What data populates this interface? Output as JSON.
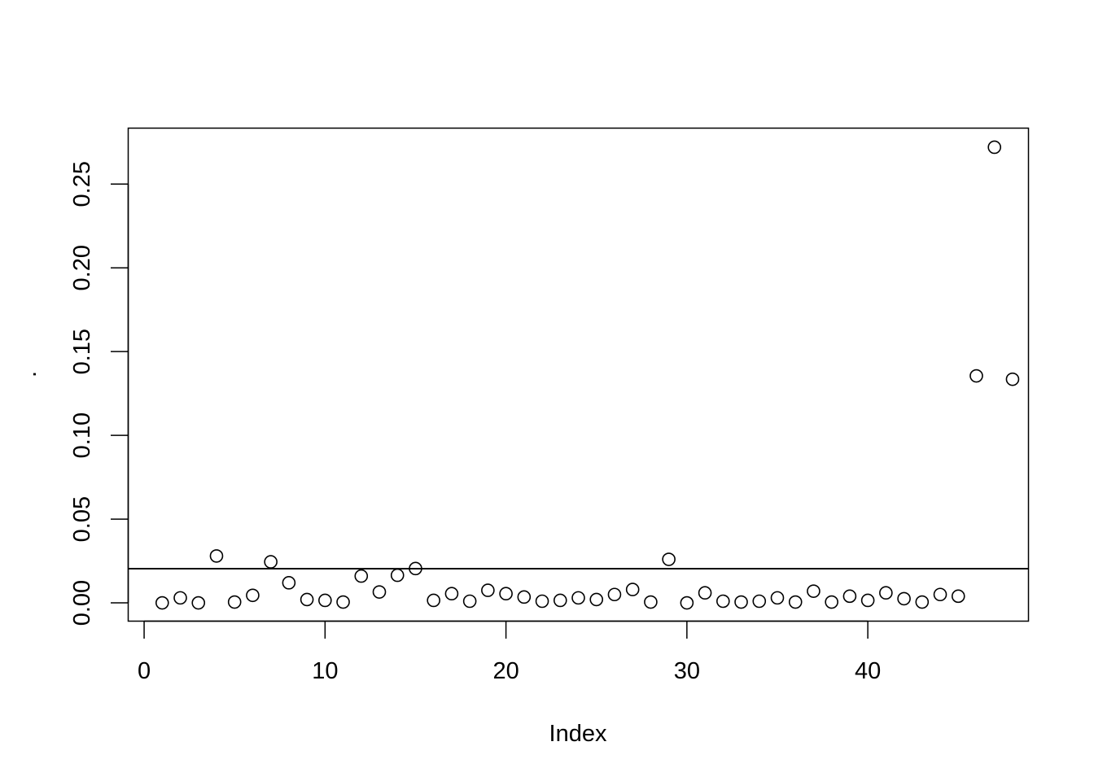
{
  "chart_data": {
    "type": "scatter",
    "title": "",
    "xlabel": "Index",
    "ylabel": ".",
    "xlim": [
      -0.88,
      48.88
    ],
    "ylim": [
      -0.0109,
      0.2834
    ],
    "x_ticks": [
      0,
      10,
      20,
      30,
      40
    ],
    "x_tick_labels": [
      "0",
      "10",
      "20",
      "30",
      "40"
    ],
    "y_ticks": [
      0.0,
      0.05,
      0.1,
      0.15,
      0.2,
      0.25
    ],
    "y_tick_labels": [
      "0.00",
      "0.05",
      "0.10",
      "0.15",
      "0.20",
      "0.25"
    ],
    "grid": false,
    "legend": "none",
    "reference_line_y": 0.0204,
    "series": [
      {
        "marker": "open-circle",
        "color": "#000000",
        "x": [
          1,
          2,
          3,
          4,
          5,
          6,
          7,
          8,
          9,
          10,
          11,
          12,
          13,
          14,
          15,
          16,
          17,
          18,
          19,
          20,
          21,
          22,
          23,
          24,
          25,
          26,
          27,
          28,
          29,
          30,
          31,
          32,
          33,
          34,
          35,
          36,
          37,
          38,
          39,
          40,
          41,
          42,
          43,
          44,
          45,
          46,
          47,
          48
        ],
        "y": [
          0.0,
          0.003,
          0.0,
          0.028,
          0.0005,
          0.0045,
          0.0245,
          0.012,
          0.002,
          0.0015,
          0.0005,
          0.016,
          0.0065,
          0.0165,
          0.0205,
          0.0015,
          0.0055,
          0.001,
          0.0075,
          0.0055,
          0.0035,
          0.001,
          0.0015,
          0.003,
          0.002,
          0.005,
          0.008,
          0.0005,
          0.026,
          0.0,
          0.006,
          0.001,
          0.0005,
          0.001,
          0.003,
          0.0005,
          0.007,
          0.0005,
          0.004,
          0.0015,
          0.006,
          0.0025,
          0.0005,
          0.005,
          0.004,
          0.1355,
          0.272,
          0.1335
        ]
      }
    ]
  }
}
